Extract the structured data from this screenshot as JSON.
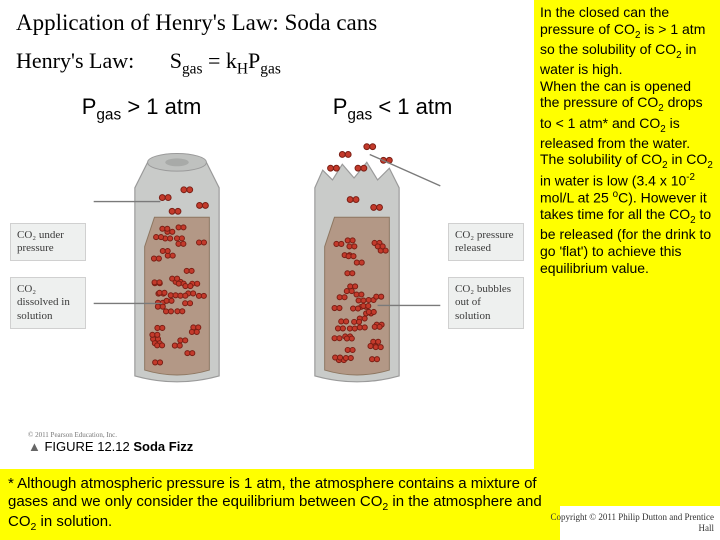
{
  "title": "Application of Henry's Law: Soda cans",
  "law_label": "Henry's Law:",
  "formula": {
    "s": "S",
    "s_sub": "gas",
    "eq": " = k",
    "k_sub": "H",
    "p": "P",
    "p_sub": "gas"
  },
  "left_header": {
    "p": "P",
    "sub": "gas",
    "rest": " > 1 atm"
  },
  "right_header": {
    "p": "P",
    "sub": "gas",
    "rest": " < 1 atm"
  },
  "left_labels": [
    "CO₂ under pressure",
    "CO₂ dissolved in solution"
  ],
  "right_labels": [
    "CO₂ pressure released",
    "CO₂ bubbles out of solution"
  ],
  "pearson_copyright": "© 2011 Pearson Education, Inc.",
  "figure_caption_prefix": "▲ ",
  "figure_caption_num": "FIGURE 12.12",
  "figure_caption_title": "  Soda Fizz",
  "footnote_parts": {
    "a": "* Although atmospheric pressure is 1 atm, the atmosphere contains a mixture of gases and we only consider the equilibrium between CO",
    "b": " in the atmosphere and CO",
    "c": " in solution."
  },
  "sidebar": {
    "p1a": "In the closed can the pressure of CO",
    "p1b": " is > 1 atm so the solubility of CO",
    "p1c": " in water is high.",
    "p2a": "When the can is opened the pressure of CO",
    "p2b": " drops to < 1 atm* and CO",
    "p2c": " is released from the water.",
    "p3a": "The solubility of CO",
    "p3b": " in CO",
    "p3c": " in water is low (3.4 x 10",
    "p3d": " mol/L at 25 ",
    "p3e": "C). However it takes time for all the CO",
    "p3f": " to be released (for the drink to go 'flat') to achieve this equilibrium value."
  },
  "copyright": "Copyright © 2011 Philip Dutton and Prentice Hall",
  "colors": {
    "can_body": "#c9cbc9",
    "can_shadow": "#a9aaa9",
    "liquid": "#b39886",
    "dot": "#c33a2b",
    "dot_outline": "#7a1e14",
    "label_bg": "#eef0ef",
    "label_border": "#d0d0d0",
    "highlight": "#ffff00",
    "pointer": "#7a7a7a"
  }
}
